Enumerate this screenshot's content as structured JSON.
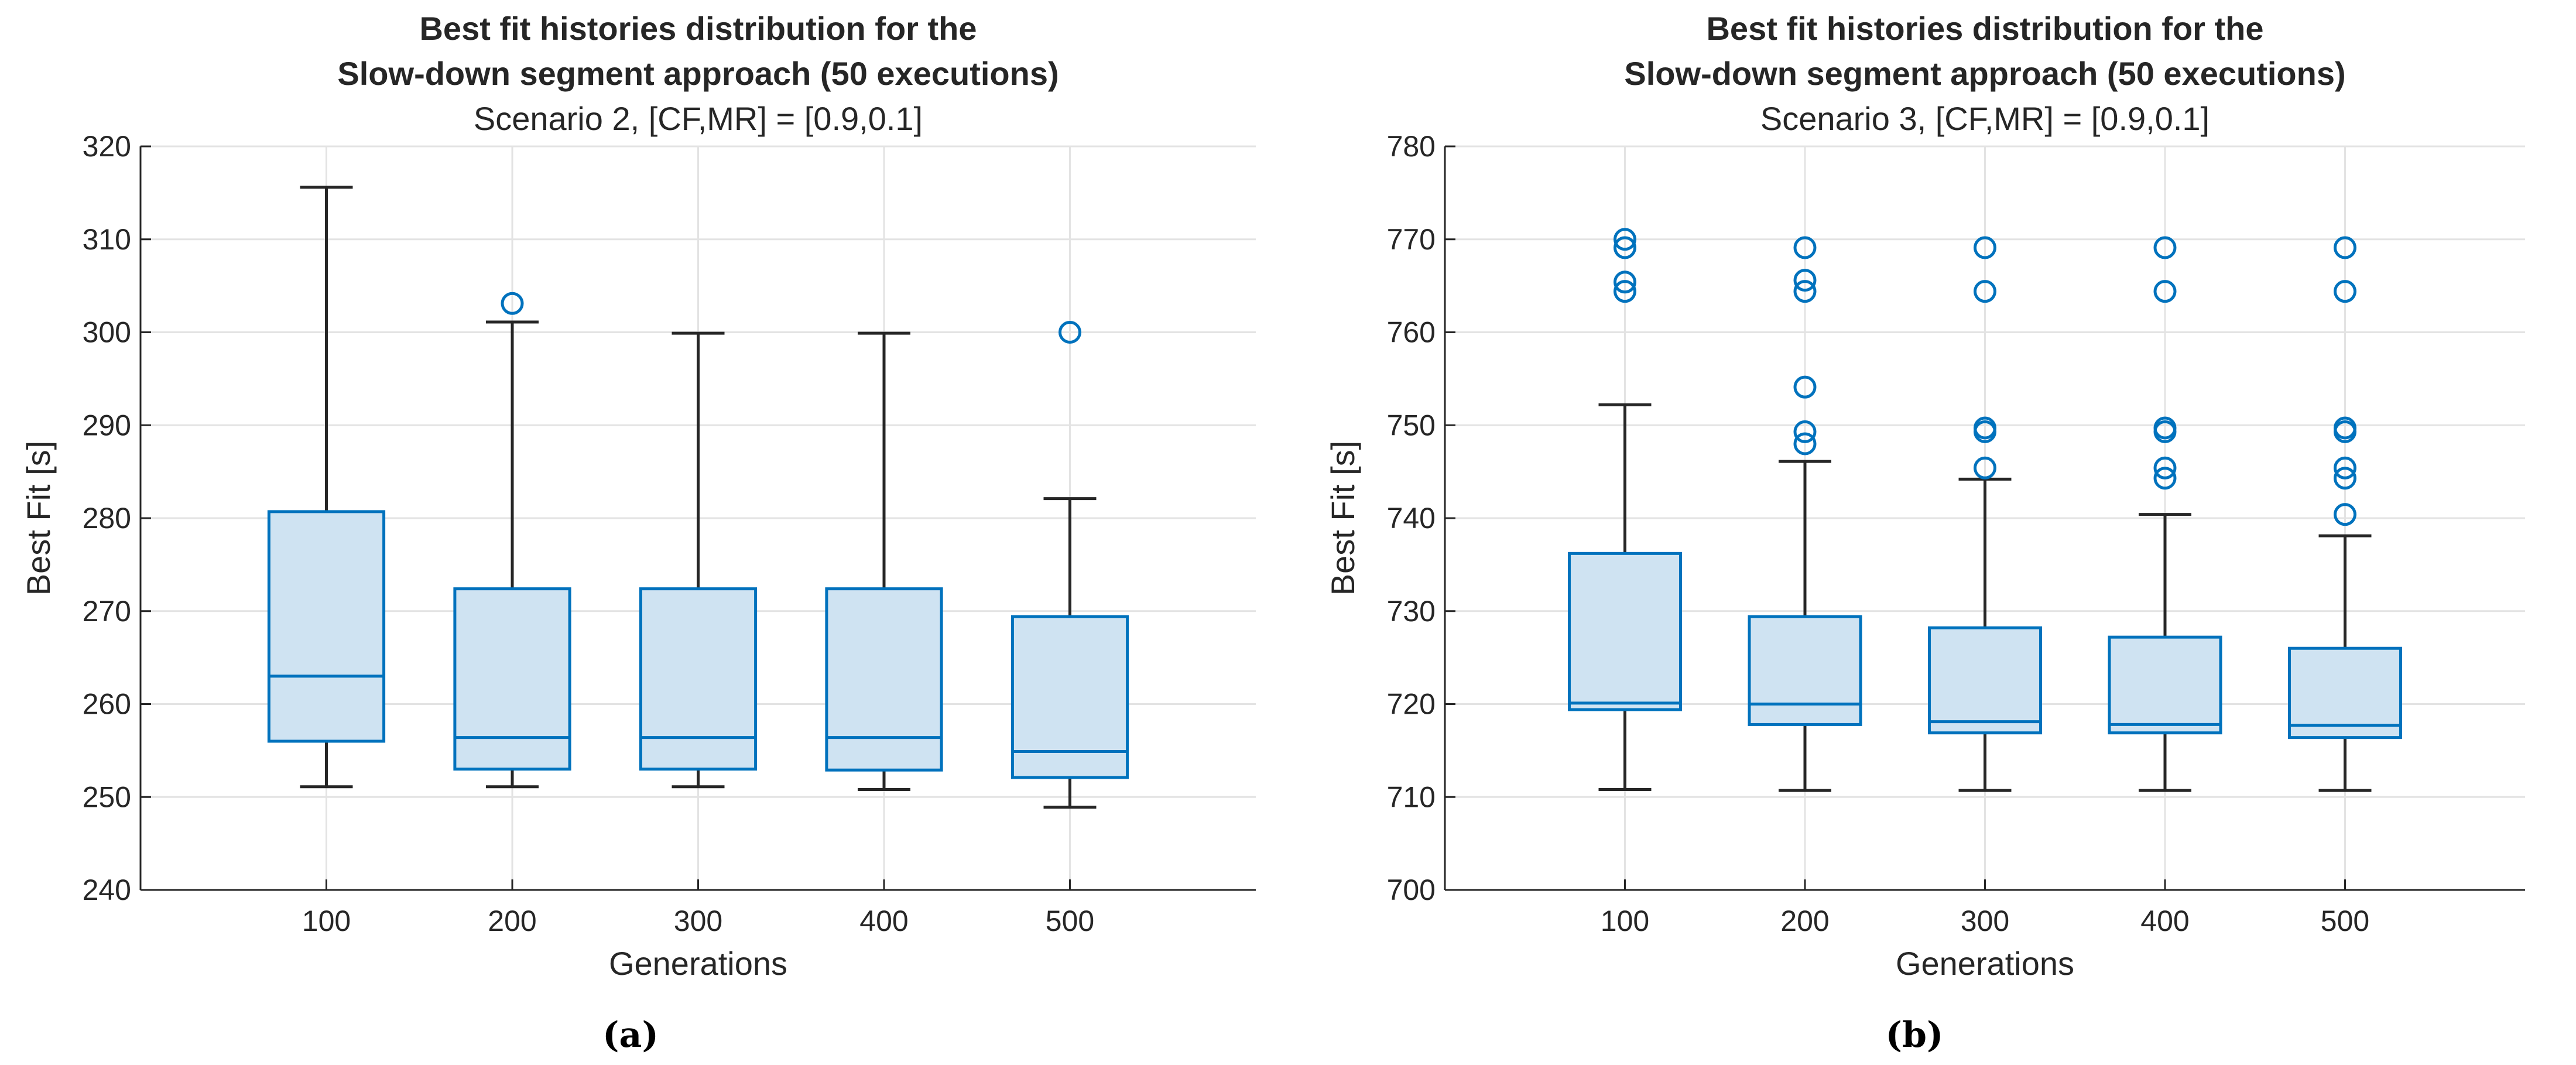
{
  "colors": {
    "box_fill": "#cfe3f2",
    "box_stroke": "#0072bd",
    "whisker": "#262626",
    "outlier": "#0072bd",
    "grid": "#e3e3e3",
    "axis": "#262626",
    "text": "#262626"
  },
  "chart_data": [
    {
      "type": "box",
      "panel_label": "(a)",
      "title_line1": "Best fit histories distribution for the",
      "title_line2": "Slow-down segment approach (50 executions)",
      "subtitle": "Scenario 2, [CF,MR] = [0.9,0.1]",
      "xlabel": "Generations",
      "ylabel": "Best Fit [s]",
      "categories": [
        "100",
        "200",
        "300",
        "400",
        "500"
      ],
      "ylim": [
        240,
        320
      ],
      "yticks": [
        240,
        250,
        260,
        270,
        280,
        290,
        300,
        310,
        320
      ],
      "grid": true,
      "boxes": [
        {
          "whisker_low": 251.1,
          "q1": 256.0,
          "median": 263.0,
          "q3": 280.7,
          "whisker_high": 315.6,
          "outliers": []
        },
        {
          "whisker_low": 251.1,
          "q1": 253.0,
          "median": 256.4,
          "q3": 272.4,
          "whisker_high": 301.1,
          "outliers": [
            303.1
          ]
        },
        {
          "whisker_low": 251.1,
          "q1": 253.0,
          "median": 256.4,
          "q3": 272.4,
          "whisker_high": 299.9,
          "outliers": []
        },
        {
          "whisker_low": 250.8,
          "q1": 252.9,
          "median": 256.4,
          "q3": 272.4,
          "whisker_high": 299.9,
          "outliers": []
        },
        {
          "whisker_low": 248.9,
          "q1": 252.1,
          "median": 254.9,
          "q3": 269.4,
          "whisker_high": 282.1,
          "outliers": [
            300.0
          ]
        }
      ]
    },
    {
      "type": "box",
      "panel_label": "(b)",
      "title_line1": "Best fit histories distribution for the",
      "title_line2": "Slow-down segment approach (50 executions)",
      "subtitle": "Scenario 3, [CF,MR] = [0.9,0.1]",
      "xlabel": "Generations",
      "ylabel": "Best Fit [s]",
      "categories": [
        "100",
        "200",
        "300",
        "400",
        "500"
      ],
      "ylim": [
        700,
        780
      ],
      "yticks": [
        700,
        710,
        720,
        730,
        740,
        750,
        760,
        770,
        780
      ],
      "grid": true,
      "boxes": [
        {
          "whisker_low": 710.8,
          "q1": 719.4,
          "median": 720.1,
          "q3": 736.2,
          "whisker_high": 752.2,
          "outliers": [
            764.4,
            765.4,
            769.1,
            770.0
          ]
        },
        {
          "whisker_low": 710.7,
          "q1": 717.8,
          "median": 720.0,
          "q3": 729.4,
          "whisker_high": 746.1,
          "outliers": [
            748.0,
            749.3,
            754.1,
            764.4,
            765.6,
            769.1
          ]
        },
        {
          "whisker_low": 710.7,
          "q1": 716.9,
          "median": 718.1,
          "q3": 728.2,
          "whisker_high": 744.2,
          "outliers": [
            745.4,
            749.3,
            749.7,
            764.4,
            769.1
          ]
        },
        {
          "whisker_low": 710.7,
          "q1": 716.9,
          "median": 717.8,
          "q3": 727.2,
          "whisker_high": 740.4,
          "outliers": [
            744.3,
            745.4,
            749.3,
            749.7,
            764.4,
            769.1
          ]
        },
        {
          "whisker_low": 710.7,
          "q1": 716.4,
          "median": 717.7,
          "q3": 726.0,
          "whisker_high": 738.1,
          "outliers": [
            740.4,
            744.3,
            745.4,
            749.3,
            749.7,
            764.4,
            769.1
          ]
        }
      ]
    }
  ]
}
